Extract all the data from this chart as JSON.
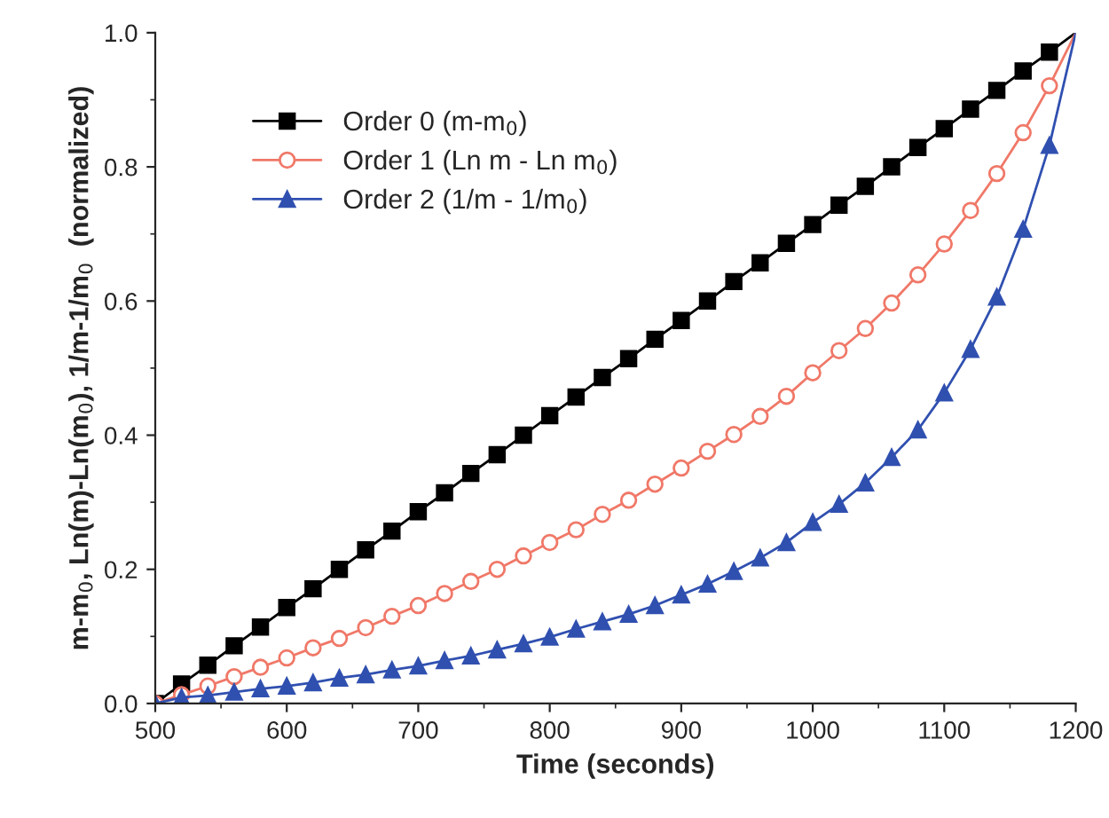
{
  "chart_data": {
    "type": "line",
    "xlabel": "Time (seconds)",
    "ylabel": "m-m$_{0}$, Ln(m)-Ln(m$_{0}$), 1/m-1/m$_{0}$  (normalized)",
    "x": [
      500,
      520,
      540,
      560,
      580,
      600,
      620,
      640,
      660,
      680,
      700,
      720,
      740,
      760,
      780,
      800,
      820,
      840,
      860,
      880,
      900,
      920,
      940,
      960,
      980,
      1000,
      1020,
      1040,
      1060,
      1080,
      1100,
      1120,
      1140,
      1160,
      1180,
      1200
    ],
    "series": [
      {
        "name": "Order 0 (m-m$_{0}$)",
        "color": "#000000",
        "marker": "square",
        "values": [
          0,
          0.029,
          0.057,
          0.086,
          0.114,
          0.143,
          0.171,
          0.2,
          0.229,
          0.257,
          0.286,
          0.314,
          0.343,
          0.371,
          0.4,
          0.429,
          0.457,
          0.486,
          0.514,
          0.543,
          0.571,
          0.6,
          0.629,
          0.657,
          0.686,
          0.714,
          0.743,
          0.771,
          0.8,
          0.829,
          0.857,
          0.886,
          0.914,
          0.943,
          0.971,
          1.0
        ]
      },
      {
        "name": "Order 1 (Ln m - Ln m$_{0}$)",
        "color": "#f07868",
        "marker": "circle",
        "values": [
          0,
          0.013,
          0.026,
          0.04,
          0.054,
          0.068,
          0.083,
          0.097,
          0.113,
          0.13,
          0.146,
          0.164,
          0.182,
          0.2,
          0.22,
          0.24,
          0.259,
          0.282,
          0.303,
          0.327,
          0.351,
          0.376,
          0.401,
          0.428,
          0.458,
          0.493,
          0.526,
          0.559,
          0.597,
          0.639,
          0.685,
          0.735,
          0.79,
          0.851,
          0.921,
          1.0
        ]
      },
      {
        "name": "Order 2 (1/m - 1/m$_{0}$)",
        "color": "#3050b0",
        "marker": "triangle",
        "values": [
          0,
          0.009,
          0.012,
          0.017,
          0.022,
          0.026,
          0.031,
          0.038,
          0.043,
          0.05,
          0.056,
          0.064,
          0.071,
          0.08,
          0.089,
          0.099,
          0.111,
          0.122,
          0.133,
          0.146,
          0.162,
          0.178,
          0.197,
          0.217,
          0.24,
          0.27,
          0.297,
          0.329,
          0.367,
          0.408,
          0.463,
          0.528,
          0.606,
          0.707,
          0.832,
          1.0
        ]
      }
    ],
    "xlim": [
      500,
      1200
    ],
    "xticks": [
      500,
      600,
      700,
      800,
      900,
      1000,
      1100,
      1200
    ],
    "ylim": [
      0,
      1.0
    ],
    "yticks": [
      {
        "value": 0,
        "label": "0.0"
      },
      0.2,
      0.4,
      0.6,
      0.8,
      {
        "value": 1,
        "label": "1.0"
      }
    ],
    "grid": false,
    "legend": "top left",
    "line_style": "solid"
  }
}
